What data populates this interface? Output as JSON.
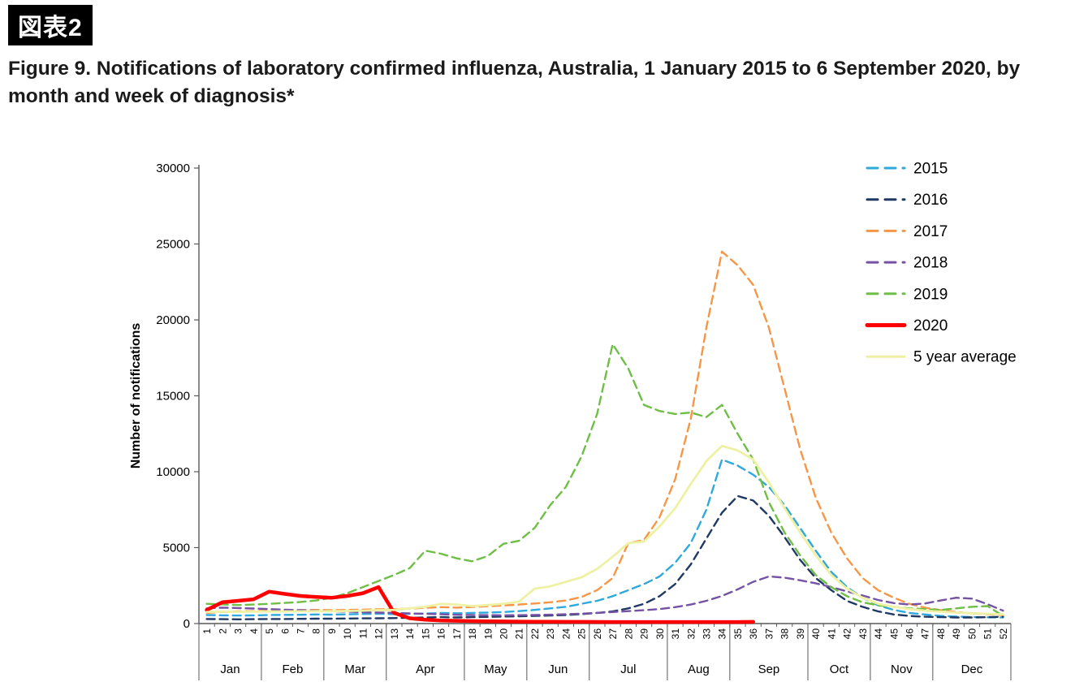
{
  "header": {
    "tag": "図表2",
    "title": "Figure 9. Notifications of laboratory confirmed influenza, Australia, 1 January 2015 to 6 September 2020, by month and week of diagnosis*"
  },
  "chart_data": {
    "type": "line",
    "title": "Notifications of laboratory confirmed influenza, Australia, 1 January 2015 to 6 September 2020, by month and week of diagnosis",
    "xlabel": "",
    "ylabel": "Number of notifications",
    "ylim": [
      0,
      30000
    ],
    "yticks": [
      0,
      5000,
      10000,
      15000,
      20000,
      25000,
      30000
    ],
    "grid": false,
    "legend_position": "top-right",
    "week_labels": [
      1,
      2,
      3,
      4,
      5,
      6,
      7,
      8,
      9,
      10,
      11,
      12,
      13,
      14,
      15,
      16,
      17,
      18,
      19,
      20,
      21,
      22,
      23,
      24,
      25,
      26,
      27,
      28,
      29,
      30,
      31,
      32,
      33,
      34,
      35,
      36,
      37,
      38,
      39,
      40,
      41,
      42,
      43,
      44,
      45,
      46,
      47,
      48,
      49,
      50,
      51,
      52
    ],
    "months": [
      {
        "label": "Jan",
        "start": 1,
        "end": 4
      },
      {
        "label": "Feb",
        "start": 5,
        "end": 8
      },
      {
        "label": "Mar",
        "start": 9,
        "end": 12
      },
      {
        "label": "Apr",
        "start": 13,
        "end": 17
      },
      {
        "label": "May",
        "start": 18,
        "end": 21
      },
      {
        "label": "Jun",
        "start": 22,
        "end": 25
      },
      {
        "label": "Jul",
        "start": 26,
        "end": 30
      },
      {
        "label": "Aug",
        "start": 31,
        "end": 34
      },
      {
        "label": "Sep",
        "start": 35,
        "end": 39
      },
      {
        "label": "Oct",
        "start": 40,
        "end": 43
      },
      {
        "label": "Nov",
        "start": 44,
        "end": 47
      },
      {
        "label": "Dec",
        "start": 48,
        "end": 52
      }
    ],
    "series": [
      {
        "name": "2015",
        "color": "#2FA9DC",
        "line_style": "dashed",
        "values": [
          560,
          540,
          530,
          540,
          560,
          570,
          580,
          600,
          590,
          610,
          630,
          650,
          620,
          640,
          660,
          700,
          680,
          700,
          720,
          760,
          820,
          900,
          1000,
          1100,
          1300,
          1500,
          1800,
          2200,
          2600,
          3100,
          4000,
          5300,
          7500,
          10800,
          10400,
          9800,
          9000,
          7800,
          6300,
          4800,
          3400,
          2400,
          1700,
          1200,
          900,
          700,
          600,
          500,
          460,
          430,
          410,
          400
        ]
      },
      {
        "name": "2016",
        "color": "#1F3864",
        "line_style": "dashed",
        "values": [
          300,
          290,
          280,
          290,
          300,
          300,
          310,
          320,
          320,
          330,
          340,
          350,
          360,
          380,
          400,
          420,
          400,
          420,
          440,
          460,
          480,
          500,
          530,
          560,
          620,
          700,
          800,
          1000,
          1300,
          1800,
          2600,
          3900,
          5600,
          7300,
          8400,
          8100,
          7100,
          5700,
          4200,
          3000,
          2200,
          1500,
          1100,
          800,
          600,
          500,
          450,
          420,
          400,
          400,
          420,
          450
        ]
      },
      {
        "name": "2017",
        "color": "#F79646",
        "line_style": "dashed",
        "values": [
          700,
          760,
          800,
          820,
          850,
          870,
          890,
          900,
          880,
          900,
          920,
          940,
          950,
          990,
          1030,
          1080,
          1050,
          1090,
          1140,
          1190,
          1250,
          1320,
          1400,
          1520,
          1750,
          2200,
          3000,
          5300,
          5500,
          7000,
          9500,
          13500,
          19500,
          24500,
          23600,
          22300,
          19500,
          15500,
          11500,
          8300,
          6000,
          4300,
          3000,
          2200,
          1700,
          1300,
          1050,
          880,
          760,
          670,
          610,
          560
        ]
      },
      {
        "name": "2018",
        "color": "#7552A3",
        "line_style": "dashed",
        "values": [
          1000,
          1050,
          1020,
          990,
          950,
          910,
          880,
          850,
          810,
          780,
          750,
          720,
          700,
          670,
          640,
          610,
          580,
          560,
          550,
          545,
          550,
          565,
          585,
          610,
          650,
          700,
          760,
          820,
          880,
          950,
          1080,
          1250,
          1500,
          1820,
          2250,
          2750,
          3100,
          3020,
          2850,
          2650,
          2400,
          2120,
          1850,
          1550,
          1350,
          1250,
          1320,
          1520,
          1700,
          1640,
          1280,
          850
        ]
      },
      {
        "name": "2019",
        "color": "#6FBE45",
        "line_style": "dashed",
        "values": [
          1300,
          1260,
          1220,
          1250,
          1300,
          1360,
          1420,
          1520,
          1700,
          2000,
          2400,
          2800,
          3200,
          3650,
          4800,
          4600,
          4300,
          4100,
          4450,
          5250,
          5450,
          6300,
          7800,
          9000,
          11000,
          13800,
          18400,
          16800,
          14400,
          14000,
          13800,
          13900,
          13600,
          14400,
          12500,
          10800,
          8000,
          6000,
          4500,
          3200,
          2400,
          1800,
          1400,
          1200,
          1100,
          1000,
          950,
          900,
          1000,
          1100,
          1150,
          500
        ]
      },
      {
        "name": "2020",
        "color": "#FF0000",
        "line_style": "solid",
        "values": [
          900,
          1400,
          1500,
          1600,
          2100,
          1950,
          1820,
          1750,
          1700,
          1820,
          2000,
          2400,
          700,
          350,
          250,
          200,
          180,
          160,
          150,
          140,
          130,
          120,
          115,
          110,
          110,
          105,
          100,
          100,
          100,
          100,
          100,
          100,
          100,
          100,
          100,
          110,
          null,
          null,
          null,
          null,
          null,
          null,
          null,
          null,
          null,
          null,
          null,
          null,
          null,
          null,
          null,
          null
        ]
      },
      {
        "name": "5 year average",
        "color": "#EEF1A3",
        "line_style": "solid",
        "values": [
          760,
          780,
          770,
          780,
          790,
          800,
          810,
          820,
          810,
          830,
          850,
          880,
          900,
          1000,
          1100,
          1300,
          1250,
          1150,
          1220,
          1300,
          1450,
          2300,
          2450,
          2750,
          3050,
          3600,
          4400,
          5300,
          5400,
          6400,
          7600,
          9200,
          10700,
          11700,
          11400,
          10800,
          9300,
          7600,
          6000,
          4500,
          3200,
          2300,
          1700,
          1300,
          1100,
          950,
          850,
          780,
          720,
          680,
          640,
          610
        ]
      }
    ]
  }
}
